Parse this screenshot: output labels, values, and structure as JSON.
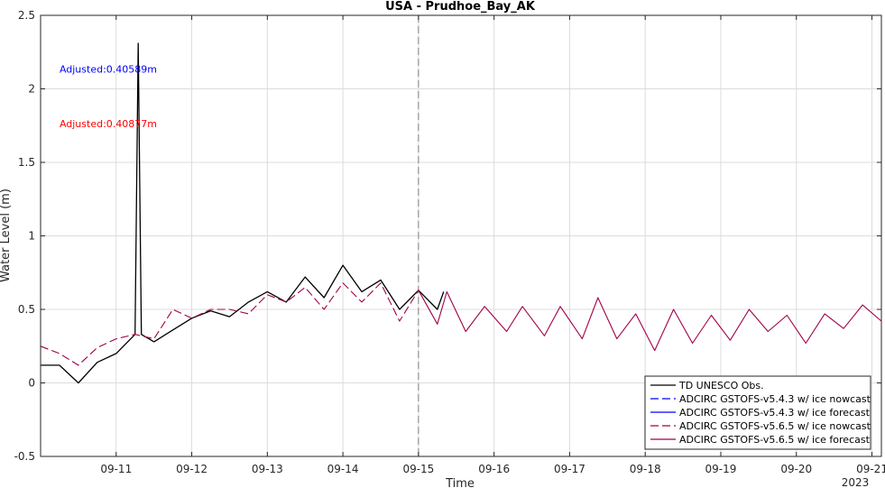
{
  "chart_data": {
    "type": "line",
    "title": "USA - Prudhoe_Bay_AK",
    "xlabel": "Time",
    "ylabel": "Water Level (m)",
    "year_label": "2023",
    "xlim": [
      "2023-09-10 00:00",
      "2023-09-21 03:00"
    ],
    "ylim": [
      -0.5,
      2.5
    ],
    "xticks": [
      "09-11",
      "09-12",
      "09-13",
      "09-14",
      "09-15",
      "09-16",
      "09-17",
      "09-18",
      "09-19",
      "09-20",
      "09-21"
    ],
    "yticks": [
      "-0.5",
      "0",
      "0.5",
      "1",
      "1.5",
      "2",
      "2.5"
    ],
    "grid": true,
    "legend_position": "bottom-right",
    "forecast_start": "2023-09-15 00:00",
    "annotations": [
      {
        "text": "Adjusted:0.40589m",
        "color": "#0000ff",
        "x": "2023-09-10 06:00",
        "y": 2.11
      },
      {
        "text": "Adjusted:0.40877m",
        "color": "#ff0000",
        "x": "2023-09-10 06:00",
        "y": 1.74
      }
    ],
    "series": [
      {
        "name": "TD UNESCO Obs.",
        "color": "#000000",
        "dash": "solid",
        "x": [
          "2023-09-10 00:00",
          "2023-09-10 06:00",
          "2023-09-10 12:00",
          "2023-09-10 18:00",
          "2023-09-11 00:00",
          "2023-09-11 06:00",
          "2023-09-11 07:00",
          "2023-09-11 08:00",
          "2023-09-11 12:00",
          "2023-09-11 18:00",
          "2023-09-12 00:00",
          "2023-09-12 06:00",
          "2023-09-12 12:00",
          "2023-09-12 18:00",
          "2023-09-13 00:00",
          "2023-09-13 06:00",
          "2023-09-13 12:00",
          "2023-09-13 18:00",
          "2023-09-14 00:00",
          "2023-09-14 06:00",
          "2023-09-14 12:00",
          "2023-09-14 18:00",
          "2023-09-15 00:00",
          "2023-09-15 06:00",
          "2023-09-15 08:00"
        ],
        "values": [
          0.12,
          0.12,
          0.0,
          0.14,
          0.2,
          0.33,
          2.31,
          0.33,
          0.28,
          0.36,
          0.44,
          0.49,
          0.45,
          0.55,
          0.62,
          0.55,
          0.72,
          0.58,
          0.8,
          0.62,
          0.7,
          0.5,
          0.63,
          0.5,
          0.62
        ]
      },
      {
        "name": "ADCIRC GSTOFS-v5.4.3 w/ ice nowcast",
        "color": "#0000ff",
        "dash": "dashed",
        "x": [],
        "values": []
      },
      {
        "name": "ADCIRC GSTOFS-v5.4.3 w/ ice forecast",
        "color": "#0000ff",
        "dash": "solid",
        "x": [],
        "values": []
      },
      {
        "name": "ADCIRC GSTOFS-v5.6.5 w/ ice nowcast",
        "color": "#a0004a",
        "dash": "dashed",
        "x": [
          "2023-09-10 00:00",
          "2023-09-10 06:00",
          "2023-09-10 12:00",
          "2023-09-10 18:00",
          "2023-09-11 00:00",
          "2023-09-11 06:00",
          "2023-09-11 12:00",
          "2023-09-11 18:00",
          "2023-09-12 00:00",
          "2023-09-12 06:00",
          "2023-09-12 12:00",
          "2023-09-12 18:00",
          "2023-09-13 00:00",
          "2023-09-13 06:00",
          "2023-09-13 12:00",
          "2023-09-13 18:00",
          "2023-09-14 00:00",
          "2023-09-14 06:00",
          "2023-09-14 12:00",
          "2023-09-14 18:00",
          "2023-09-15 00:00"
        ],
        "values": [
          0.25,
          0.2,
          0.12,
          0.24,
          0.3,
          0.33,
          0.3,
          0.5,
          0.44,
          0.5,
          0.5,
          0.47,
          0.6,
          0.55,
          0.65,
          0.5,
          0.68,
          0.55,
          0.68,
          0.42,
          0.63
        ]
      },
      {
        "name": "ADCIRC GSTOFS-v5.6.5 w/ ice forecast",
        "color": "#a0004a",
        "dash": "solid",
        "x": [
          "2023-09-15 00:00",
          "2023-09-15 06:00",
          "2023-09-15 09:00",
          "2023-09-15 15:00",
          "2023-09-15 21:00",
          "2023-09-16 04:00",
          "2023-09-16 09:00",
          "2023-09-16 16:00",
          "2023-09-16 21:00",
          "2023-09-17 04:00",
          "2023-09-17 09:00",
          "2023-09-17 15:00",
          "2023-09-17 21:00",
          "2023-09-18 03:00",
          "2023-09-18 09:00",
          "2023-09-18 15:00",
          "2023-09-18 21:00",
          "2023-09-19 03:00",
          "2023-09-19 09:00",
          "2023-09-19 15:00",
          "2023-09-19 21:00",
          "2023-09-20 03:00",
          "2023-09-20 09:00",
          "2023-09-20 15:00",
          "2023-09-20 21:00",
          "2023-09-21 03:00"
        ],
        "values": [
          0.63,
          0.4,
          0.62,
          0.35,
          0.52,
          0.35,
          0.52,
          0.32,
          0.52,
          0.3,
          0.58,
          0.3,
          0.47,
          0.22,
          0.5,
          0.27,
          0.46,
          0.29,
          0.5,
          0.35,
          0.46,
          0.27,
          0.47,
          0.37,
          0.53,
          0.42
        ]
      }
    ]
  }
}
